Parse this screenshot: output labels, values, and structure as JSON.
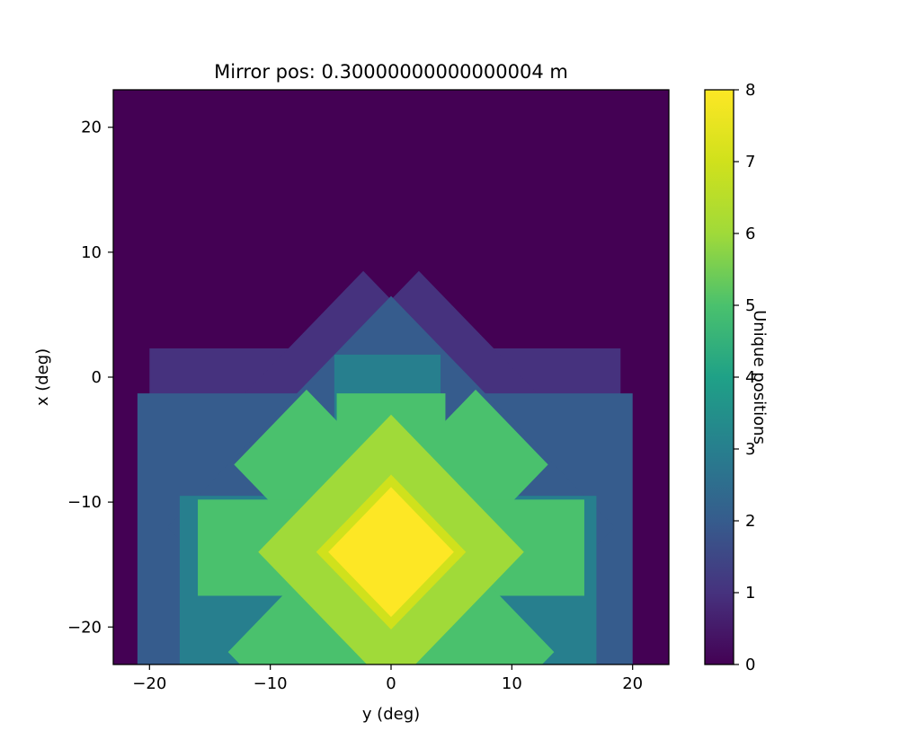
{
  "chart_data": {
    "type": "heatmap",
    "title": "Mirror pos: 0.30000000000000004 m",
    "xlabel": "y (deg)",
    "ylabel": "x (deg)",
    "xlim": [
      -23,
      23
    ],
    "ylim": [
      -23,
      23
    ],
    "x_ticks": [
      -20,
      -10,
      0,
      10,
      20
    ],
    "x_tick_labels": [
      "−20",
      "−10",
      "0",
      "10",
      "20"
    ],
    "y_ticks": [
      20,
      10,
      0,
      -10,
      -20
    ],
    "y_tick_labels": [
      "20",
      "10",
      "0",
      "−10",
      "−20"
    ],
    "colormap": "viridis",
    "colorbar": {
      "label": "Unique positions",
      "range": [
        0,
        8
      ],
      "ticks": [
        0,
        1,
        2,
        3,
        4,
        5,
        6,
        7,
        8
      ],
      "tick_labels": [
        "0",
        "1",
        "2",
        "3",
        "4",
        "5",
        "6",
        "7",
        "8"
      ]
    },
    "regions": [
      {
        "shape": "rect",
        "y_range": [
          -20,
          19
        ],
        "x_range": [
          -23,
          2.3
        ],
        "value": 1
      },
      {
        "shape": "diamond",
        "center_y": -2.3,
        "center_x": -8,
        "radius": 16.5,
        "value": 1
      },
      {
        "shape": "diamond",
        "center_y": 2.3,
        "center_x": -8,
        "radius": 16.5,
        "value": 1
      },
      {
        "shape": "rect",
        "y_range": [
          -21,
          20
        ],
        "x_range": [
          -23,
          -1.3
        ],
        "value": 2
      },
      {
        "shape": "diamond",
        "center_y": 0,
        "center_x": -12,
        "radius": 18.5,
        "value": 2
      },
      {
        "shape": "rect",
        "y_range": [
          -4.7,
          4.1
        ],
        "x_range": [
          -23,
          1.8
        ],
        "value": 3
      },
      {
        "shape": "rect",
        "y_range": [
          -17.5,
          17
        ],
        "x_range": [
          -23,
          -9.5
        ],
        "value": 3
      },
      {
        "shape": "diamond",
        "center_y": -7,
        "center_x": -7,
        "radius": 6,
        "value": 5
      },
      {
        "shape": "diamond",
        "center_y": 7,
        "center_x": -7,
        "radius": 6,
        "value": 5
      },
      {
        "shape": "rect",
        "y_range": [
          -4.5,
          4.5
        ],
        "x_range": [
          -23,
          -1.3
        ],
        "value": 5
      },
      {
        "shape": "rect",
        "y_range": [
          -16,
          16
        ],
        "x_range": [
          -17.5,
          -9.8
        ],
        "value": 5
      },
      {
        "shape": "diamond",
        "center_y": -7,
        "center_x": -22,
        "radius": 6.5,
        "value": 5
      },
      {
        "shape": "diamond",
        "center_y": 7,
        "center_x": -22,
        "radius": 6.5,
        "value": 5
      },
      {
        "shape": "diamond",
        "center_y": 0,
        "center_x": -14,
        "radius": 11,
        "value": 6
      },
      {
        "shape": "diamond",
        "center_y": 0,
        "center_x": -14,
        "radius": 6.2,
        "value": 7
      },
      {
        "shape": "diamond",
        "center_y": 0,
        "center_x": -14,
        "radius": 5.2,
        "value": 8
      }
    ]
  }
}
